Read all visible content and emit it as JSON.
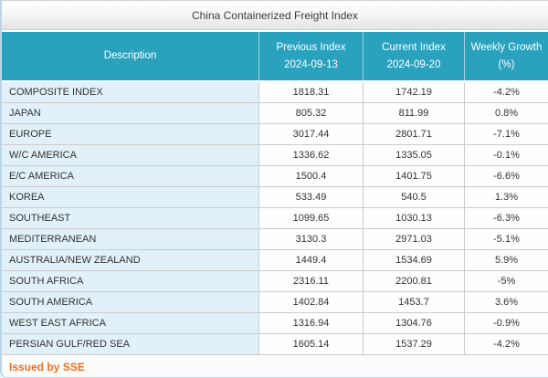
{
  "window": {
    "title": "China Containerized Freight Index"
  },
  "colors": {
    "header_bg": "#2AA2BE",
    "description_cell_bg": "#E2F1F9",
    "footer_accent": "#F26E1E",
    "row_border": "#CBCBCB"
  },
  "table": {
    "columns": [
      {
        "line1": "Description",
        "line2": ""
      },
      {
        "line1": "Previous Index",
        "line2": "2024-09-13"
      },
      {
        "line1": "Current Index",
        "line2": "2024-09-20"
      },
      {
        "line1": "Weekly Growth",
        "line2": "(%)"
      }
    ],
    "rows": [
      {
        "description": "COMPOSITE INDEX",
        "previous_index": "1818.31",
        "current_index": "1742.19",
        "weekly_growth": "-4.2%"
      },
      {
        "description": "JAPAN",
        "previous_index": "805.32",
        "current_index": "811.99",
        "weekly_growth": "0.8%"
      },
      {
        "description": "EUROPE",
        "previous_index": "3017.44",
        "current_index": "2801.71",
        "weekly_growth": "-7.1%"
      },
      {
        "description": "W/C AMERICA",
        "previous_index": "1336.62",
        "current_index": "1335.05",
        "weekly_growth": "-0.1%"
      },
      {
        "description": "E/C AMERICA",
        "previous_index": "1500.4",
        "current_index": "1401.75",
        "weekly_growth": "-6.6%"
      },
      {
        "description": "KOREA",
        "previous_index": "533.49",
        "current_index": "540.5",
        "weekly_growth": "1.3%"
      },
      {
        "description": "SOUTHEAST",
        "previous_index": "1099.65",
        "current_index": "1030.13",
        "weekly_growth": "-6.3%"
      },
      {
        "description": "MEDITERRANEAN",
        "previous_index": "3130.3",
        "current_index": "2971.03",
        "weekly_growth": "-5.1%"
      },
      {
        "description": "AUSTRALIA/NEW ZEALAND",
        "previous_index": "1449.4",
        "current_index": "1534.69",
        "weekly_growth": "5.9%"
      },
      {
        "description": "SOUTH AFRICA",
        "previous_index": "2316.11",
        "current_index": "2200.81",
        "weekly_growth": "-5%"
      },
      {
        "description": "SOUTH AMERICA",
        "previous_index": "1402.84",
        "current_index": "1453.7",
        "weekly_growth": "3.6%"
      },
      {
        "description": "WEST EAST AFRICA",
        "previous_index": "1316.94",
        "current_index": "1304.76",
        "weekly_growth": "-0.9%"
      },
      {
        "description": "PERSIAN GULF/RED SEA",
        "previous_index": "1605.14",
        "current_index": "1537.29",
        "weekly_growth": "-4.2%"
      }
    ]
  },
  "footer": {
    "issued_by": "Issued by SSE"
  }
}
